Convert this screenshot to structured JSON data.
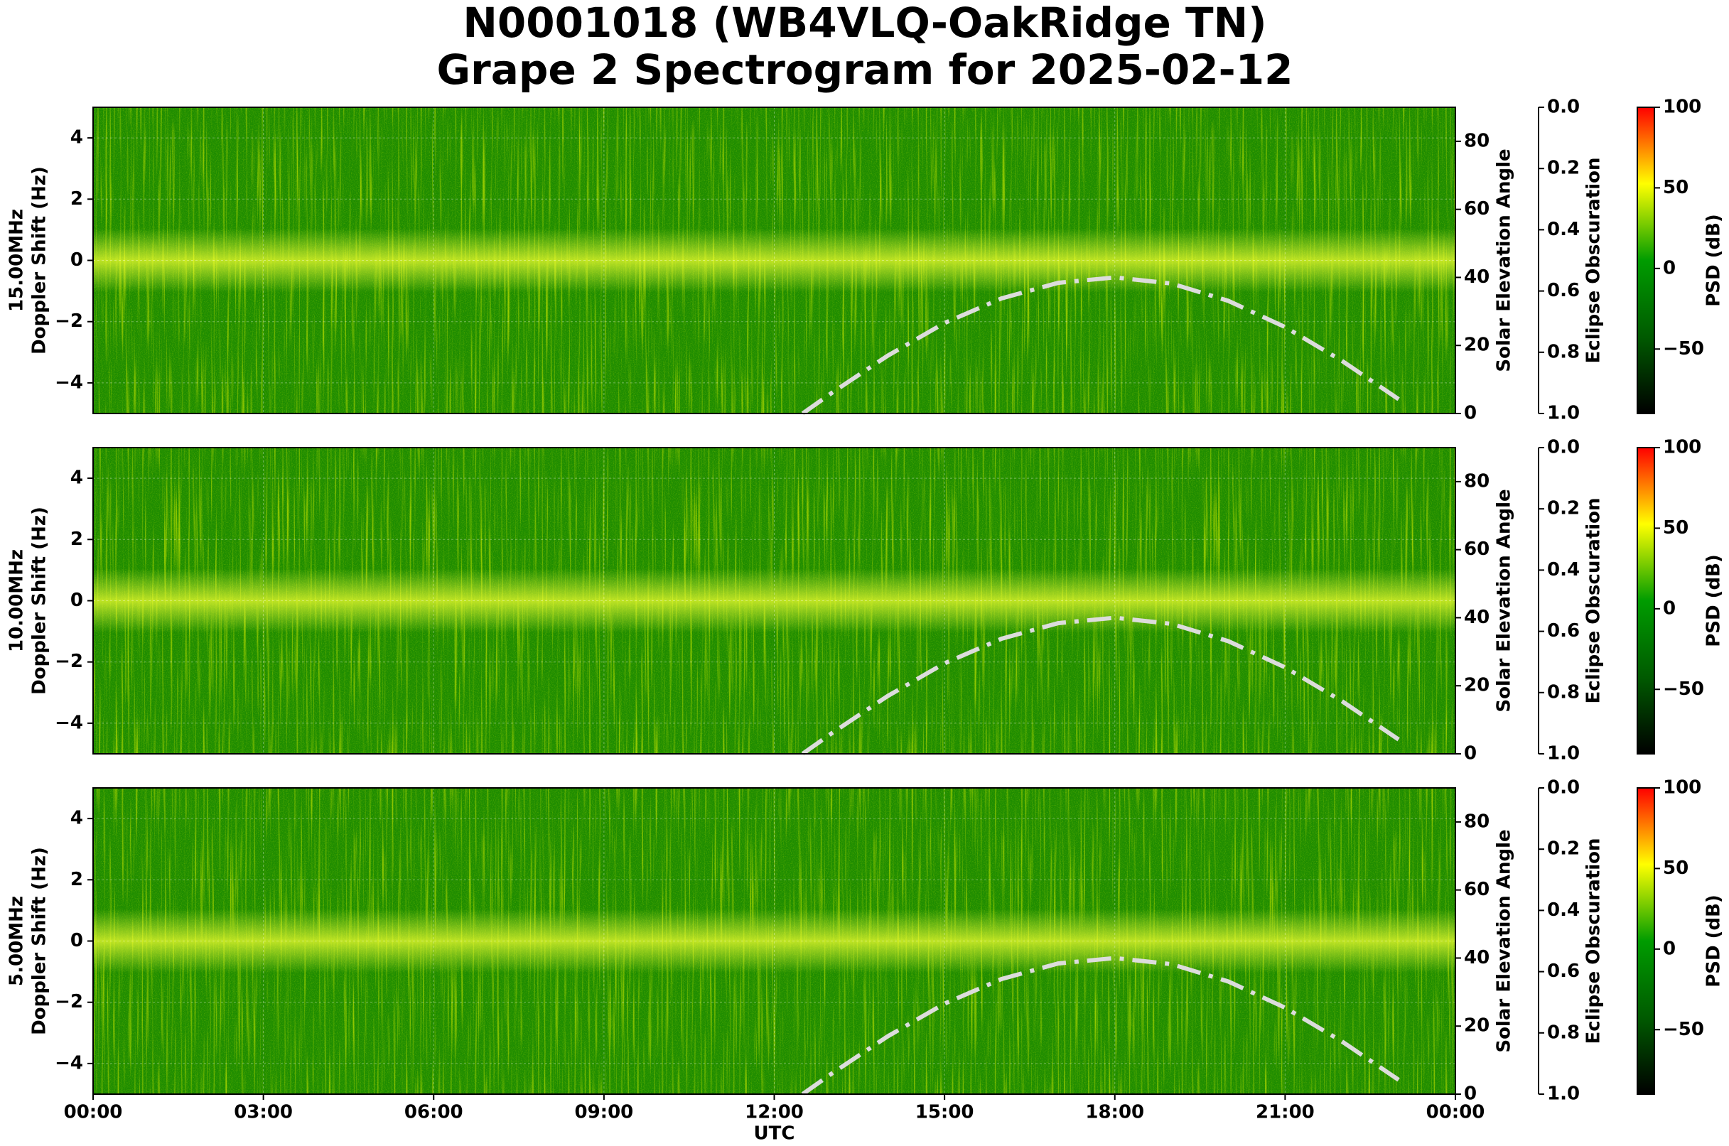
{
  "chart_data": {
    "type": "spectrogram",
    "title": [
      "N0001018 (WB4VLQ-OakRidge TN)",
      "Grape 2 Spectrogram for 2025-02-12"
    ],
    "xlabel": "UTC",
    "xlim": [
      0,
      24
    ],
    "xticks": [
      {
        "value": 0,
        "label": "00:00"
      },
      {
        "value": 3,
        "label": "03:00"
      },
      {
        "value": 6,
        "label": "06:00"
      },
      {
        "value": 9,
        "label": "09:00"
      },
      {
        "value": 12,
        "label": "12:00"
      },
      {
        "value": 15,
        "label": "15:00"
      },
      {
        "value": 18,
        "label": "18:00"
      },
      {
        "value": 21,
        "label": "21:00"
      },
      {
        "value": 24,
        "label": "00:00"
      }
    ],
    "grid": true,
    "panels": [
      {
        "ylabel": [
          "15.00MHz",
          "Doppler Shift (Hz)"
        ],
        "ylim": [
          -5,
          5
        ],
        "yticks": [
          {
            "value": -4,
            "label": "−4"
          },
          {
            "value": -2,
            "label": "−2"
          },
          0,
          2,
          4
        ],
        "y2label": "Solar Elevation Angle",
        "y2lim": [
          0,
          90
        ],
        "y2ticks": [
          0,
          20,
          40,
          60,
          80
        ],
        "y3label": "Eclipse Obscuration",
        "y3lim": [
          1,
          0
        ],
        "y3ticks": [
          {
            "value": 0,
            "label": "0.0"
          },
          0.2,
          0.4,
          0.6,
          0.8,
          {
            "value": 1,
            "label": "1.0"
          }
        ],
        "colorbar": {
          "label": "PSD (dB)",
          "lim": [
            -90,
            100
          ],
          "ticks": [
            {
              "value": -50,
              "label": "−50"
            },
            0,
            50,
            100
          ],
          "colors": [
            "#000000",
            "#005a00",
            "#009c00",
            "#ffff00",
            "#ff0000"
          ]
        },
        "series": [
          {
            "color": "#dcdcdc",
            "axis": "y2",
            "x": [
              12.5,
              13,
              14,
              15,
              16,
              17,
              18,
              19,
              20,
              21,
              22,
              23
            ],
            "values": [
              0,
              5.9,
              17,
              26.6,
              33.8,
              38.4,
              40,
              38.2,
              33.1,
              25.4,
              15.5,
              4.2
            ]
          },
          {
            "color": "#b0b0b0",
            "axis": "y3",
            "x": [
              0,
              24
            ],
            "values": [
              0,
              0
            ]
          }
        ]
      },
      {
        "ylabel": [
          "10.00MHz",
          "Doppler Shift (Hz)"
        ],
        "ylim": [
          -5,
          5
        ],
        "yticks": [
          {
            "value": -4,
            "label": "−4"
          },
          {
            "value": -2,
            "label": "−2"
          },
          0,
          2,
          4
        ],
        "y2label": "Solar Elevation Angle",
        "y2lim": [
          0,
          90
        ],
        "y2ticks": [
          0,
          20,
          40,
          60,
          80
        ],
        "y3label": "Eclipse Obscuration",
        "y3lim": [
          1,
          0
        ],
        "y3ticks": [
          {
            "value": 0,
            "label": "0.0"
          },
          0.2,
          0.4,
          0.6,
          0.8,
          {
            "value": 1,
            "label": "1.0"
          }
        ],
        "colorbar": {
          "label": "PSD (dB)",
          "lim": [
            -90,
            100
          ],
          "ticks": [
            {
              "value": -50,
              "label": "−50"
            },
            0,
            50,
            100
          ],
          "colors": [
            "#000000",
            "#005a00",
            "#009c00",
            "#ffff00",
            "#ff0000"
          ]
        },
        "series": [
          {
            "color": "#dcdcdc",
            "axis": "y2",
            "x": [
              12.5,
              13,
              14,
              15,
              16,
              17,
              18,
              19,
              20,
              21,
              22,
              23
            ],
            "values": [
              0,
              5.9,
              17,
              26.6,
              33.8,
              38.4,
              40,
              38.2,
              33.1,
              25.4,
              15.5,
              4.2
            ]
          },
          {
            "color": "#b0b0b0",
            "axis": "y3",
            "x": [
              0,
              24
            ],
            "values": [
              0,
              0
            ]
          }
        ]
      },
      {
        "ylabel": [
          "5.00MHz",
          "Doppler Shift (Hz)"
        ],
        "ylim": [
          -5,
          5
        ],
        "yticks": [
          {
            "value": -4,
            "label": "−4"
          },
          {
            "value": -2,
            "label": "−2"
          },
          0,
          2,
          4
        ],
        "y2label": "Solar Elevation Angle",
        "y2lim": [
          0,
          90
        ],
        "y2ticks": [
          0,
          20,
          40,
          60,
          80
        ],
        "y3label": "Eclipse Obscuration",
        "y3lim": [
          1,
          0
        ],
        "y3ticks": [
          {
            "value": 0,
            "label": "0.0"
          },
          0.2,
          0.4,
          0.6,
          0.8,
          {
            "value": 1,
            "label": "1.0"
          }
        ],
        "colorbar": {
          "label": "PSD (dB)",
          "lim": [
            -90,
            100
          ],
          "ticks": [
            {
              "value": -50,
              "label": "−50"
            },
            0,
            50,
            100
          ],
          "colors": [
            "#000000",
            "#005a00",
            "#009c00",
            "#ffff00",
            "#ff0000"
          ]
        },
        "series": [
          {
            "color": "#dcdcdc",
            "axis": "y2",
            "x": [
              12.5,
              13,
              14,
              15,
              16,
              17,
              18,
              19,
              20,
              21,
              22,
              23
            ],
            "values": [
              0,
              5.9,
              17,
              26.6,
              33.8,
              38.4,
              40,
              38.2,
              33.1,
              25.4,
              15.5,
              4.2
            ]
          },
          {
            "color": "#b0b0b0",
            "axis": "y3",
            "x": [
              0,
              24
            ],
            "values": [
              0,
              0
            ]
          }
        ]
      }
    ]
  }
}
